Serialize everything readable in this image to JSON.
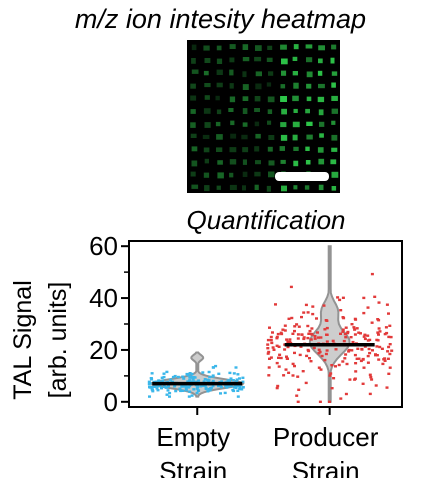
{
  "heatmap": {
    "title": "m/z ion intesity heatmap",
    "grid_rows": 12,
    "grid_cols": 12,
    "spot_color": "#2ec84a",
    "background": "#000000",
    "scale_bar_color": "#ffffff"
  },
  "chart_data": {
    "type": "violin",
    "title": "Quantification",
    "ylabel_lines": [
      "TAL Signal",
      "[arb. units]"
    ],
    "xlabel": "",
    "categories": [
      {
        "name": "Empty",
        "name_line2": "Strain"
      },
      {
        "name": "Producer",
        "name_line2": "Strain"
      }
    ],
    "ylim": [
      -2,
      62
    ],
    "yticks": [
      0,
      20,
      40,
      60
    ],
    "ytick_labels": [
      "0",
      "20",
      "40",
      "60"
    ],
    "minor_ticks": [
      10,
      30,
      50
    ],
    "grid": false,
    "series": [
      {
        "median": 7,
        "min": 2,
        "max": 19,
        "point_count": 190,
        "point_color": "#3bb7ea",
        "violin_color": "#c8c8c8",
        "violin_stroke": "#888888"
      },
      {
        "median": 22,
        "min": 0,
        "max": 60,
        "point_count": 250,
        "point_color": "#e23a3a",
        "violin_color": "#c8c8c8",
        "violin_stroke": "#888888"
      }
    ],
    "median_line_color": "#000000"
  }
}
